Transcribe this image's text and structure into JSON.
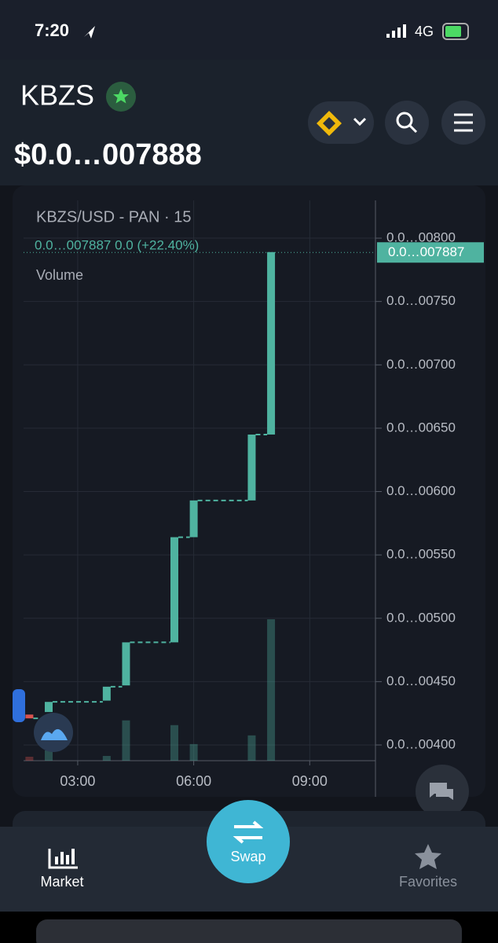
{
  "status_bar": {
    "time": "7:20",
    "network": "4G"
  },
  "header": {
    "symbol": "KBZS",
    "price": "$0.0…007888"
  },
  "chart": {
    "type": "candlestick",
    "title": "KBZS/USD - PAN · 15",
    "legend": "0.0…007887  0.0 (+22.40%)",
    "volume_label": "Volume",
    "up_color": "#4fb3a0",
    "down_color": "#d9534f",
    "grid": true,
    "x": [
      1.75,
      2.25,
      3.75,
      4.25,
      5.5,
      6,
      7.5,
      8
    ],
    "open": [
      424,
      426,
      435,
      447,
      481,
      564,
      593,
      645
    ],
    "close": [
      421,
      434,
      446,
      481,
      564,
      593,
      645,
      789
    ],
    "volume": [
      5,
      13,
      6,
      51,
      45,
      21,
      32,
      179
    ],
    "xlim": [
      1.6,
      10.7
    ],
    "xticks": [
      {
        "value": 3,
        "label": "03:00"
      },
      {
        "value": 6,
        "label": "06:00"
      },
      {
        "value": 9,
        "label": "09:00"
      }
    ],
    "ylim": [
      387.6,
      829.8
    ],
    "yticks": [
      {
        "value": 800,
        "label": "0.0…00800"
      },
      {
        "value": 750,
        "label": "0.0…00750"
      },
      {
        "value": 700,
        "label": "0.0…00700"
      },
      {
        "value": 650,
        "label": "0.0…00650"
      },
      {
        "value": 600,
        "label": "0.0…00600"
      },
      {
        "value": 550,
        "label": "0.0…00550"
      },
      {
        "value": 500,
        "label": "0.0…00500"
      },
      {
        "value": 450,
        "label": "0.0…00450"
      },
      {
        "value": 400,
        "label": "0.0…00400"
      }
    ],
    "last_price": {
      "value": 788.7,
      "label": "0.0…007887"
    }
  },
  "nav": {
    "items": [
      "Market",
      "Swap",
      "Favorites"
    ]
  }
}
